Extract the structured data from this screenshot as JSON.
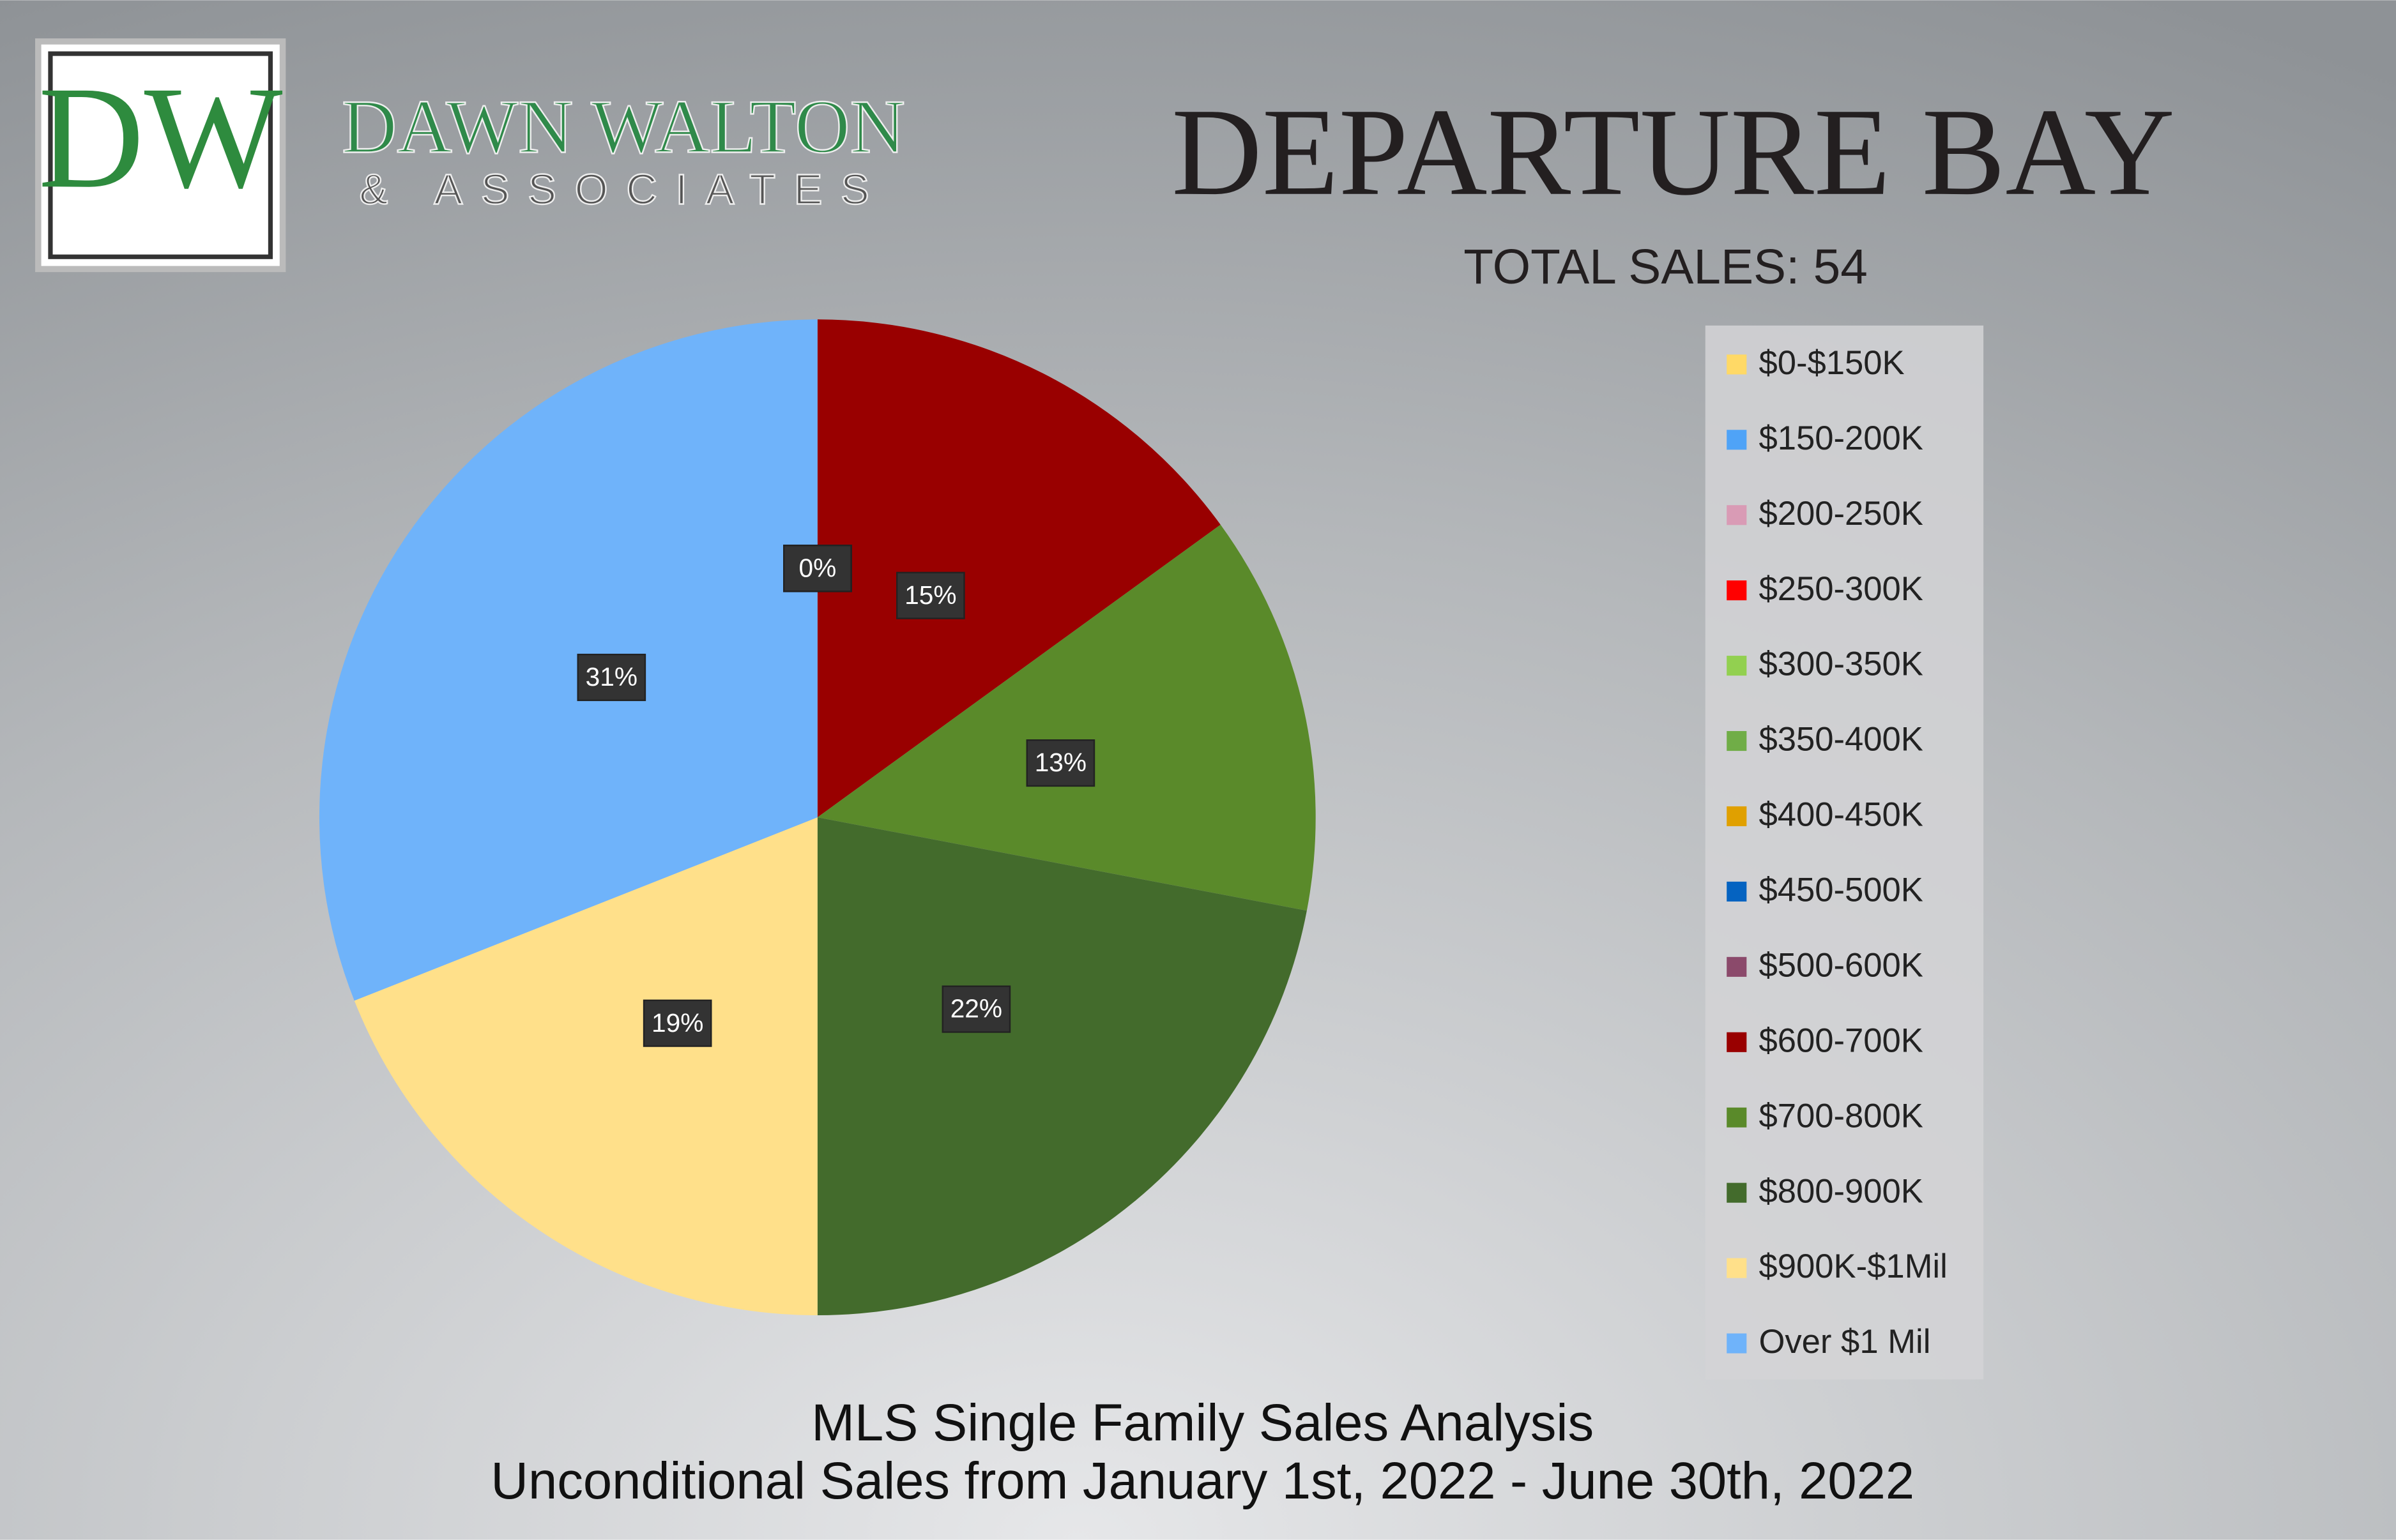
{
  "logo": {
    "monogram": "DW",
    "name": "DAWN WALTON",
    "tagline": "& ASSOCIATES"
  },
  "chart_data": {
    "type": "pie",
    "title": "DEPARTURE BAY",
    "subtitle": "TOTAL SALES: 54",
    "footer": [
      "MLS Single Family Sales Analysis",
      "Unconditional Sales from January 1st, 2022 - June 30th, 2022"
    ],
    "categories": [
      "$0-$150K",
      "$150-200K",
      "$200-250K",
      "$250-300K",
      "$300-350K",
      "$350-400K",
      "$400-450K",
      "$450-500K",
      "$500-600K",
      "$600-700K",
      "$700-800K",
      "$800-900K",
      "$900K-$1Mil",
      "Over $1 Mil"
    ],
    "values": [
      0,
      0,
      0,
      0,
      0,
      0,
      0,
      0,
      0,
      15,
      13,
      22,
      19,
      31
    ],
    "value_labels": [
      "0%",
      "0%",
      "0%",
      "0%",
      "0%",
      "0%",
      "0%",
      "0%",
      "0%",
      "15%",
      "13%",
      "22%",
      "19%",
      "31%"
    ],
    "colors": [
      "#ffd966",
      "#4fa3f7",
      "#d99bb5",
      "#ff0000",
      "#92d050",
      "#70ad47",
      "#e0a000",
      "#0563c1",
      "#8b4a6b",
      "#990000",
      "#5a8a2a",
      "#436b2c",
      "#ffe08a",
      "#6fb3fa"
    ],
    "legend": "right"
  }
}
